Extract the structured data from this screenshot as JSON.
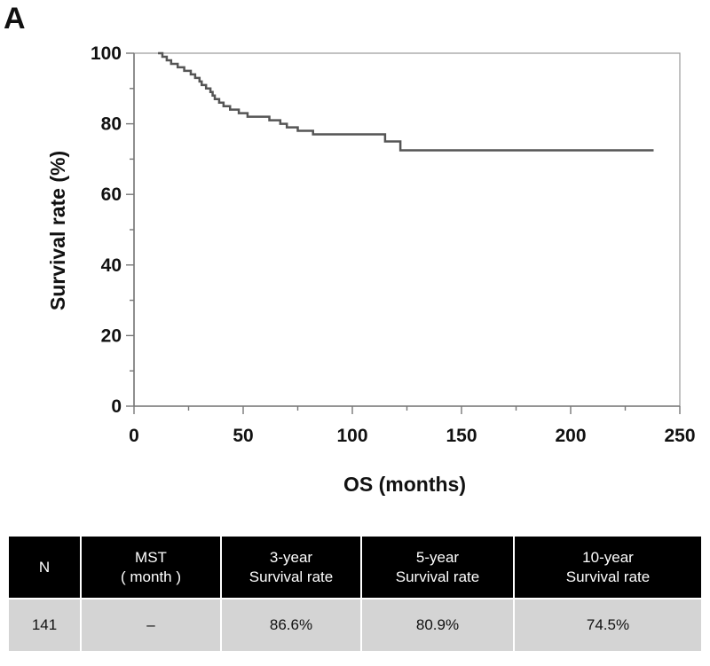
{
  "panel_label": "A",
  "chart_data": {
    "type": "line",
    "step": true,
    "xlabel": "OS (months)",
    "ylabel": "Survival rate (%)",
    "xlim": [
      0,
      250
    ],
    "ylim": [
      0,
      100
    ],
    "x_ticks": [
      "0",
      "50",
      "100",
      "150",
      "200",
      "250"
    ],
    "y_ticks": [
      "0",
      "20",
      "40",
      "60",
      "80",
      "100"
    ],
    "grid": false,
    "line_color": "#555555",
    "series": [
      {
        "x": [
          11,
          13,
          15,
          17,
          20,
          23,
          26,
          28,
          30,
          31,
          33,
          35,
          36,
          37,
          39,
          41,
          44,
          48,
          52,
          62,
          67,
          70,
          75,
          82,
          115,
          122,
          238
        ],
        "y": [
          100,
          99,
          98,
          97,
          96,
          95,
          94,
          93,
          92,
          91,
          90,
          89,
          88,
          87,
          86,
          85,
          84,
          83,
          82,
          81,
          80,
          79,
          78,
          77,
          75,
          72.5,
          72.5
        ]
      }
    ]
  },
  "table": {
    "headers": [
      {
        "line1": "N",
        "line2": ""
      },
      {
        "line1": "MST",
        "line2": "( month )"
      },
      {
        "line1": "3-year",
        "line2": "Survival rate"
      },
      {
        "line1": "5-year",
        "line2": "Survival rate"
      },
      {
        "line1": "10-year",
        "line2": "Survival rate"
      }
    ],
    "row": [
      "141",
      "–",
      "86.6%",
      "80.9%",
      "74.5%"
    ]
  }
}
